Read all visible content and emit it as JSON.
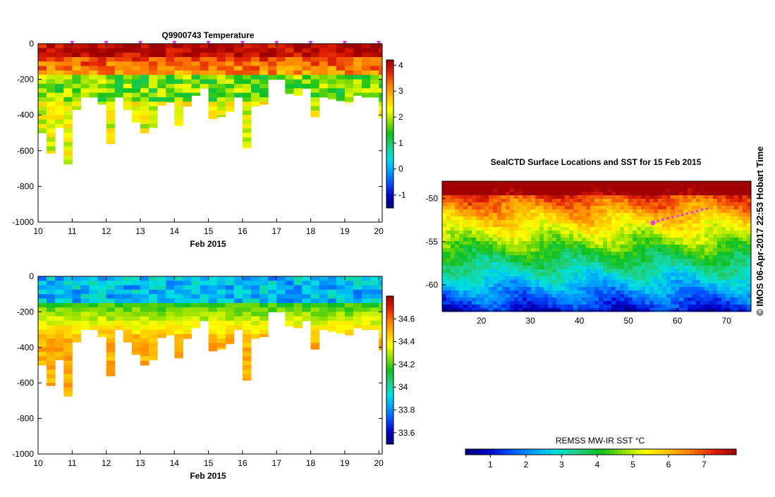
{
  "colors": {
    "background": "#ffffff",
    "axis": "#000000",
    "marker": "#e040e0",
    "cmap": [
      "#00007a",
      "#0000c8",
      "#0050ff",
      "#00a0ff",
      "#00e0e0",
      "#20d080",
      "#10c020",
      "#90e000",
      "#ffff00",
      "#ffc000",
      "#ff7a00",
      "#e02000",
      "#a00000"
    ]
  },
  "credit": "© IMOS 06-Apr-2017 22:53 Hobart Time",
  "chart_data": [
    {
      "id": "temperature",
      "type": "heatmap",
      "title": "Q9900743  Temperature",
      "xlabel": "Feb 2015",
      "ylabel": "",
      "xlim": [
        10,
        20.1
      ],
      "ylim": [
        -1000,
        0
      ],
      "xticks": [
        "10",
        "11",
        "12",
        "13",
        "14",
        "15",
        "16",
        "17",
        "18",
        "19",
        "20"
      ],
      "yticks": [
        "0",
        "-200",
        "-400",
        "-600",
        "-800",
        "-1000"
      ],
      "colorbar": {
        "range": [
          -1.5,
          4.2
        ],
        "ticks": [
          "4",
          "3",
          "2",
          "1",
          "0",
          "-1"
        ],
        "tick_values": [
          4,
          3,
          2,
          1,
          0,
          -1
        ]
      },
      "profile_times": [
        10.0,
        10.25,
        10.5,
        10.75,
        11.0,
        11.25,
        11.5,
        11.75,
        12.0,
        12.25,
        12.5,
        12.75,
        13.0,
        13.25,
        13.5,
        13.75,
        14.0,
        14.25,
        14.5,
        14.75,
        15.0,
        15.25,
        15.5,
        15.75,
        16.0,
        16.25,
        16.5,
        16.75,
        17.0,
        17.25,
        17.5,
        17.75,
        18.0,
        18.25,
        18.5,
        18.75,
        19.0,
        19.25,
        19.5,
        19.75,
        20.0
      ],
      "profile_max_depth": [
        -500,
        -615,
        -470,
        -675,
        -370,
        -300,
        -300,
        -340,
        -560,
        -300,
        -370,
        -440,
        -500,
        -470,
        -345,
        -330,
        -460,
        -350,
        -290,
        -250,
        -420,
        -410,
        -380,
        -300,
        -585,
        -350,
        -340,
        -200,
        -200,
        -280,
        -290,
        -250,
        -410,
        -300,
        -310,
        -320,
        -330,
        -290,
        -300,
        -300,
        -415
      ],
      "surface_value": 4.0,
      "deep_value": 2.2,
      "marker_times": [
        11.0,
        12.0,
        13.0,
        14.0,
        15.0,
        16.0,
        17.0,
        18.0,
        19.0,
        20.0
      ]
    },
    {
      "id": "salinity",
      "type": "heatmap",
      "title": "",
      "xlabel": "Feb 2015",
      "ylabel": "",
      "xlim": [
        10,
        20.1
      ],
      "ylim": [
        -1000,
        0
      ],
      "xticks": [
        "10",
        "11",
        "12",
        "13",
        "14",
        "15",
        "16",
        "17",
        "18",
        "19",
        "20"
      ],
      "yticks": [
        "0",
        "-200",
        "-400",
        "-600",
        "-800",
        "-1000"
      ],
      "colorbar": {
        "range": [
          33.5,
          34.8
        ],
        "ticks": [
          "34.6",
          "34.4",
          "34.2",
          "34",
          "33.8",
          "33.6"
        ],
        "tick_values": [
          34.6,
          34.4,
          34.2,
          34.0,
          33.8,
          33.6
        ]
      },
      "surface_value": 33.85,
      "deep_value": 34.5
    },
    {
      "id": "sst_map",
      "type": "heatmap",
      "title": "SealCTD Surface Locations and SST for 15 Feb 2015",
      "xlim": [
        12,
        75
      ],
      "ylim": [
        -63,
        -48
      ],
      "xticks": [
        "20",
        "30",
        "40",
        "50",
        "60",
        "70"
      ],
      "yticks": [
        "-50",
        "-55",
        "-60"
      ],
      "colorbar": {
        "label": "REMSS MW-IR SST °C",
        "range": [
          0.3,
          7.9
        ],
        "ticks": [
          "1",
          "2",
          "3",
          "4",
          "5",
          "6",
          "7"
        ]
      },
      "track": {
        "lon": [
          55,
          56,
          57,
          58,
          59,
          60,
          61,
          62,
          63,
          64,
          65,
          66
        ],
        "lat": [
          -52.8,
          -52.6,
          -52.45,
          -52.3,
          -52.2,
          -52.05,
          -51.9,
          -51.75,
          -51.6,
          -51.45,
          -51.3,
          -51.2
        ]
      }
    }
  ]
}
